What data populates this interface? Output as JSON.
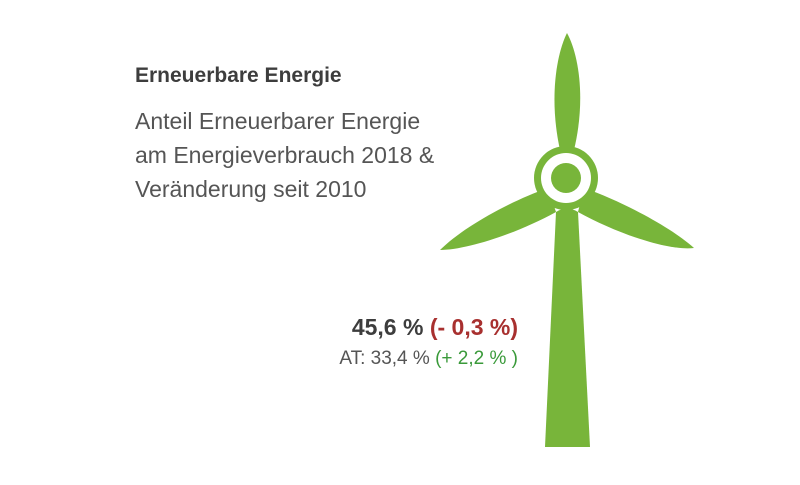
{
  "title": "Erneuerbare Energie",
  "subtitle_lines": [
    "Anteil Erneuerbarer Energie",
    "am Energieverbrauch 2018 &",
    "Veränderung seit 2010"
  ],
  "main": {
    "value": "45,6 %",
    "change": "(- 0,3 %)"
  },
  "comparison": {
    "value": "AT: 33,4 %",
    "change": "(+ 2,2 % )"
  }
}
